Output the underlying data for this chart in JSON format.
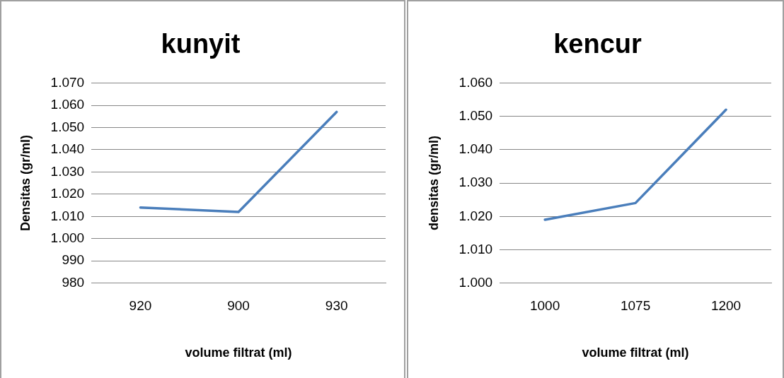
{
  "chart_data": [
    {
      "type": "line",
      "title": "kunyit",
      "xlabel": "volume filtrat (ml)",
      "ylabel": "Densitas (gr/ml)",
      "categories": [
        "920",
        "900",
        "930"
      ],
      "series": [
        {
          "color": "#4a7ebb",
          "values": [
            1014,
            1012,
            1057
          ]
        }
      ],
      "ylim": [
        980,
        1070
      ],
      "yticks": [
        980,
        990,
        {
          "value": 1000,
          "label": "1.000"
        },
        {
          "value": 1010,
          "label": "1.010"
        },
        {
          "value": 1020,
          "label": "1.020"
        },
        {
          "value": 1030,
          "label": "1.030"
        },
        {
          "value": 1040,
          "label": "1.040"
        },
        {
          "value": 1050,
          "label": "1.050"
        },
        {
          "value": 1060,
          "label": "1.060"
        },
        {
          "value": 1070,
          "label": "1.070"
        }
      ],
      "grid": "y",
      "legend": false,
      "marker": "none",
      "line_style": "solid"
    },
    {
      "type": "line",
      "title": "kencur",
      "xlabel": "volume filtrat (ml)",
      "ylabel": "densitas (gr/ml)",
      "categories": [
        "1000",
        "1075",
        "1200"
      ],
      "series": [
        {
          "color": "#4a7ebb",
          "values": [
            1019,
            1024,
            1052
          ]
        }
      ],
      "ylim": [
        1000,
        1060
      ],
      "yticks": [
        {
          "value": 1000,
          "label": "1.000"
        },
        {
          "value": 1010,
          "label": "1.010"
        },
        {
          "value": 1020,
          "label": "1.020"
        },
        {
          "value": 1030,
          "label": "1.030"
        },
        {
          "value": 1040,
          "label": "1.040"
        },
        {
          "value": 1050,
          "label": "1.050"
        },
        {
          "value": 1060,
          "label": "1.060"
        }
      ],
      "grid": "y",
      "legend": false,
      "marker": "none",
      "line_style": "solid"
    }
  ]
}
